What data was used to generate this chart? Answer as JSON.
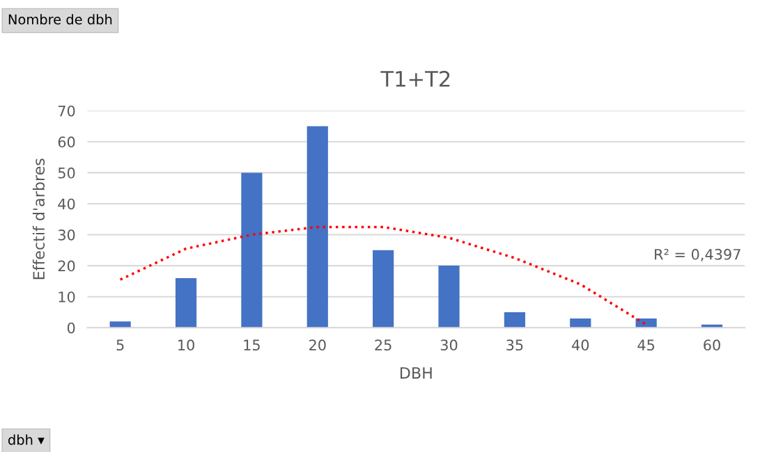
{
  "chart_data": {
    "type": "bar",
    "title": "T1+T2",
    "xlabel": "DBH",
    "ylabel": "Effectif d'arbres",
    "categories": [
      "5",
      "10",
      "15",
      "20",
      "25",
      "30",
      "35",
      "40",
      "45",
      "60"
    ],
    "series": [
      {
        "color": "#4472c4",
        "values": [
          2,
          16,
          50,
          65,
          25,
          20,
          5,
          3,
          3,
          1
        ]
      },
      {
        "type": "line",
        "color": "#ff0000",
        "line_style": "dotted",
        "values": [
          15.5,
          25.5,
          30,
          32.5,
          32.5,
          29,
          22.5,
          14,
          1,
          null
        ]
      }
    ],
    "ylim": [
      0,
      70
    ],
    "yticks": [
      0,
      10,
      20,
      30,
      40,
      50,
      60,
      70
    ],
    "grid": "y",
    "legend": false,
    "annotations": [
      "Nombre de dbh",
      "R² = 0,4397",
      "dbh ▾"
    ]
  }
}
